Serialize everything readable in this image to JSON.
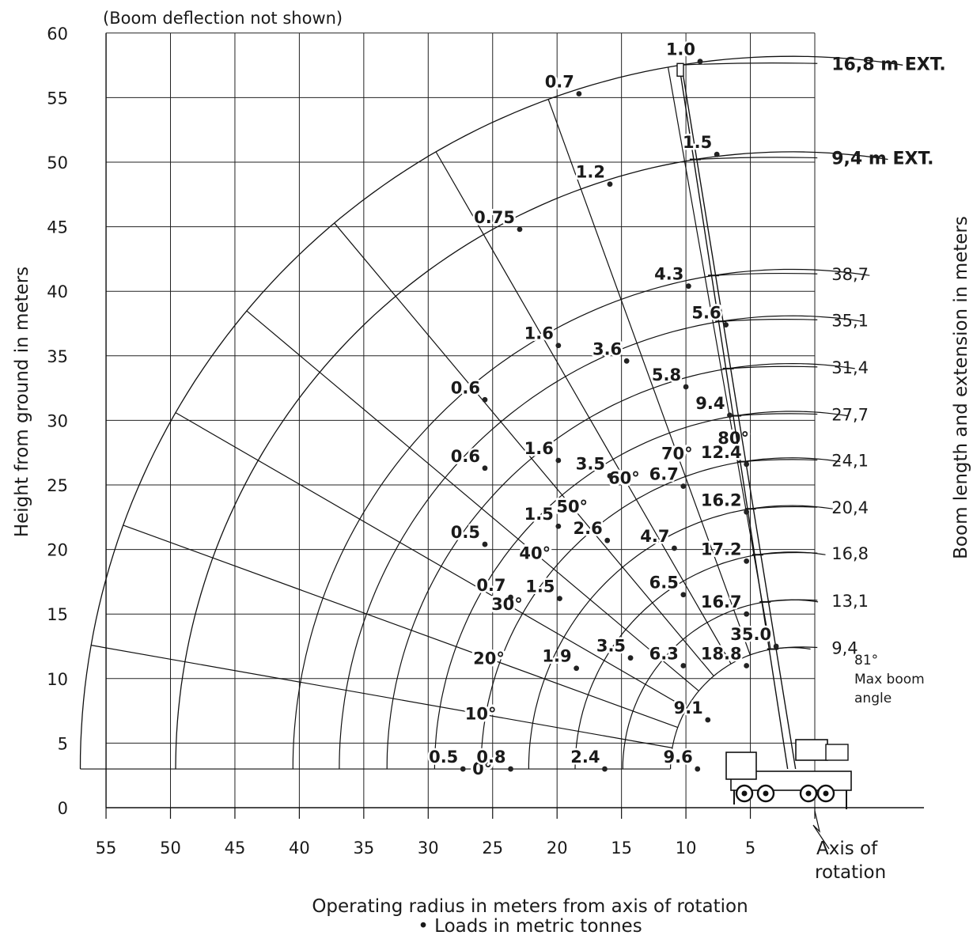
{
  "chart_data": {
    "type": "scatter",
    "title": "(Boom deflection not shown)",
    "xlabel": "Operating radius in meters from axis of rotation",
    "xlabel2": "• Loads in metric tonnes",
    "ylabel": "Height from ground in meters",
    "ylabel_right": "Boom length and extension in meters",
    "xlim": [
      55,
      0
    ],
    "ylim": [
      0,
      60
    ],
    "grid": true,
    "x_ticks": [
      55,
      50,
      45,
      40,
      35,
      30,
      25,
      20,
      15,
      10,
      5
    ],
    "y_ticks": [
      0,
      5,
      10,
      15,
      20,
      25,
      30,
      35,
      40,
      45,
      50,
      55,
      60
    ],
    "pivot": {
      "x": 1.8,
      "y": 3
    },
    "boom_arcs": [
      {
        "label": "16,8 m EXT.",
        "radius": 55.2,
        "emphasis": true
      },
      {
        "label": "9,4 m EXT.",
        "radius": 47.8,
        "emphasis": true
      },
      {
        "label": "38,7",
        "radius": 38.7
      },
      {
        "label": "35,1",
        "radius": 35.1
      },
      {
        "label": "31,4",
        "radius": 31.4
      },
      {
        "label": "27,7",
        "radius": 27.7
      },
      {
        "label": "24,1",
        "radius": 24.1
      },
      {
        "label": "20,4",
        "radius": 20.4
      },
      {
        "label": "16,8",
        "radius": 16.8
      },
      {
        "label": "13,1",
        "radius": 13.1
      },
      {
        "label": "9,4",
        "radius": 9.4
      }
    ],
    "angle_lines": [
      {
        "label": "0°",
        "deg": 0
      },
      {
        "label": "10°",
        "deg": 10
      },
      {
        "label": "20°",
        "deg": 20
      },
      {
        "label": "30°",
        "deg": 30
      },
      {
        "label": "40°",
        "deg": 40
      },
      {
        "label": "50°",
        "deg": 50
      },
      {
        "label": "60°",
        "deg": 60
      },
      {
        "label": "70°",
        "deg": 70
      },
      {
        "label": "80°",
        "deg": 80
      }
    ],
    "max_boom_angle": {
      "label_line1": "81°",
      "label_line2": "Max boom",
      "label_line3": "angle"
    },
    "axis_of_rotation": {
      "line1": "Axis of",
      "line2": "rotation"
    },
    "loads": [
      {
        "label": "1.0",
        "x": 8.9,
        "y": 57.8
      },
      {
        "label": "0.7",
        "x": 18.3,
        "y": 55.3
      },
      {
        "label": "1.5",
        "x": 7.6,
        "y": 50.6
      },
      {
        "label": "1.2",
        "x": 15.9,
        "y": 48.3
      },
      {
        "label": "0.75",
        "x": 22.9,
        "y": 44.8
      },
      {
        "label": "4.3",
        "x": 9.8,
        "y": 40.4
      },
      {
        "label": "5.6",
        "x": 6.9,
        "y": 37.4
      },
      {
        "label": "1.6",
        "x": 19.9,
        "y": 35.8
      },
      {
        "label": "3.6",
        "x": 14.6,
        "y": 34.6
      },
      {
        "label": "5.8",
        "x": 10.0,
        "y": 32.6
      },
      {
        "label": "0.6",
        "x": 25.6,
        "y": 31.6
      },
      {
        "label": "9.4",
        "x": 6.6,
        "y": 30.4
      },
      {
        "label": "12.4",
        "x": 5.3,
        "y": 26.6
      },
      {
        "label": "0.6",
        "x": 25.6,
        "y": 26.3
      },
      {
        "label": "1.6",
        "x": 19.9,
        "y": 26.9
      },
      {
        "label": "3.5",
        "x": 15.9,
        "y": 25.7
      },
      {
        "label": "6.7",
        "x": 10.2,
        "y": 24.9
      },
      {
        "label": "16.2",
        "x": 5.3,
        "y": 22.9
      },
      {
        "label": "1.5",
        "x": 19.9,
        "y": 21.8
      },
      {
        "label": "2.6",
        "x": 16.1,
        "y": 20.7
      },
      {
        "label": "4.7",
        "x": 10.9,
        "y": 20.1
      },
      {
        "label": "0.5",
        "x": 25.6,
        "y": 20.4
      },
      {
        "label": "17.2",
        "x": 5.3,
        "y": 19.1
      },
      {
        "label": "0.7",
        "x": 23.6,
        "y": 16.3
      },
      {
        "label": "1.5",
        "x": 19.8,
        "y": 16.2
      },
      {
        "label": "6.5",
        "x": 10.2,
        "y": 16.5
      },
      {
        "label": "16.7",
        "x": 5.3,
        "y": 15.0
      },
      {
        "label": "35.0",
        "x": 3.0,
        "y": 12.5
      },
      {
        "label": "3.5",
        "x": 14.3,
        "y": 11.6
      },
      {
        "label": "6.3",
        "x": 10.2,
        "y": 11.0
      },
      {
        "label": "18.8",
        "x": 5.3,
        "y": 11.0
      },
      {
        "label": "1.9",
        "x": 18.5,
        "y": 10.8
      },
      {
        "label": "9.1",
        "x": 8.3,
        "y": 6.8
      },
      {
        "label": "9.6",
        "x": 9.1,
        "y": 3.0
      },
      {
        "label": "0.5",
        "x": 27.3,
        "y": 3.0
      },
      {
        "label": "0.8",
        "x": 23.6,
        "y": 3.0
      },
      {
        "label": "2.4",
        "x": 16.3,
        "y": 3.0
      }
    ]
  }
}
